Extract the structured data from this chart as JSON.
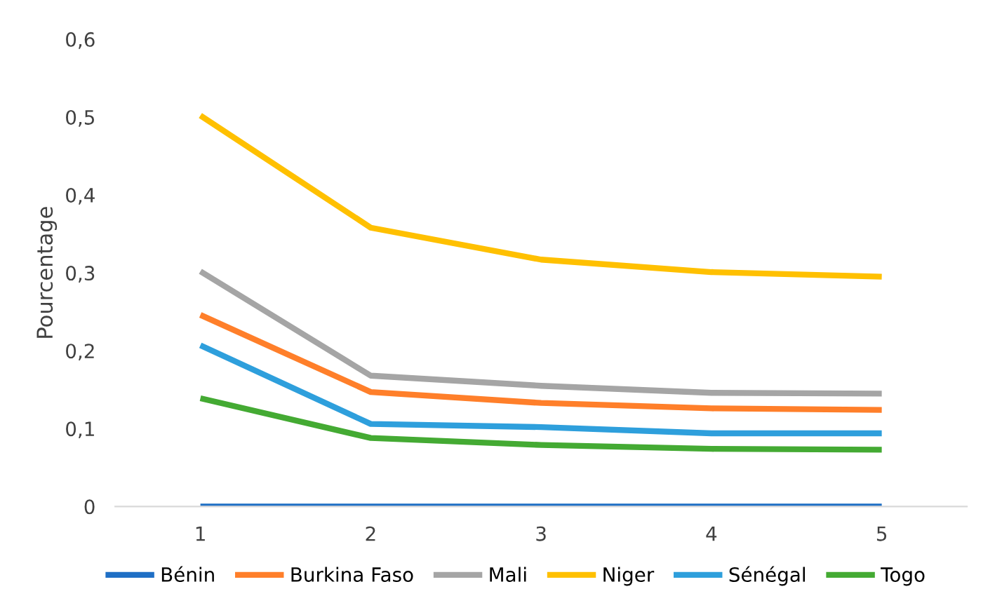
{
  "chart_data": {
    "type": "line",
    "ylabel": "Pourcentage",
    "categories": [
      "1",
      "2",
      "3",
      "4",
      "5"
    ],
    "series": [
      {
        "name": "Bénin",
        "color": "#1f6fc5",
        "values": [
          0,
          0,
          0,
          0,
          0
        ]
      },
      {
        "name": "Burkina Faso",
        "color": "#ff7f2a",
        "values": [
          0.246,
          0.147,
          0.133,
          0.126,
          0.124
        ]
      },
      {
        "name": "Mali",
        "color": "#a5a5a5",
        "values": [
          0.302,
          0.168,
          0.155,
          0.146,
          0.145
        ]
      },
      {
        "name": "Niger",
        "color": "#ffc000",
        "values": [
          0.502,
          0.358,
          0.317,
          0.301,
          0.295
        ]
      },
      {
        "name": "Sénégal",
        "color": "#2e9fdc",
        "values": [
          0.207,
          0.106,
          0.102,
          0.094,
          0.094
        ]
      },
      {
        "name": "Togo",
        "color": "#44aa33",
        "values": [
          0.139,
          0.088,
          0.079,
          0.074,
          0.073
        ]
      }
    ],
    "ylim": [
      0,
      0.6
    ],
    "yticks": [
      {
        "value": 0,
        "label": "0"
      },
      {
        "value": 0.1,
        "label": "0,1"
      },
      {
        "value": 0.2,
        "label": "0,2"
      },
      {
        "value": 0.3,
        "label": "0,3"
      },
      {
        "value": 0.4,
        "label": "0,4"
      },
      {
        "value": 0.5,
        "label": "0,5"
      },
      {
        "value": 0.6,
        "label": "0,6"
      }
    ],
    "grid": false,
    "legend": "bottom",
    "marker": "none",
    "line_style": "solid"
  }
}
